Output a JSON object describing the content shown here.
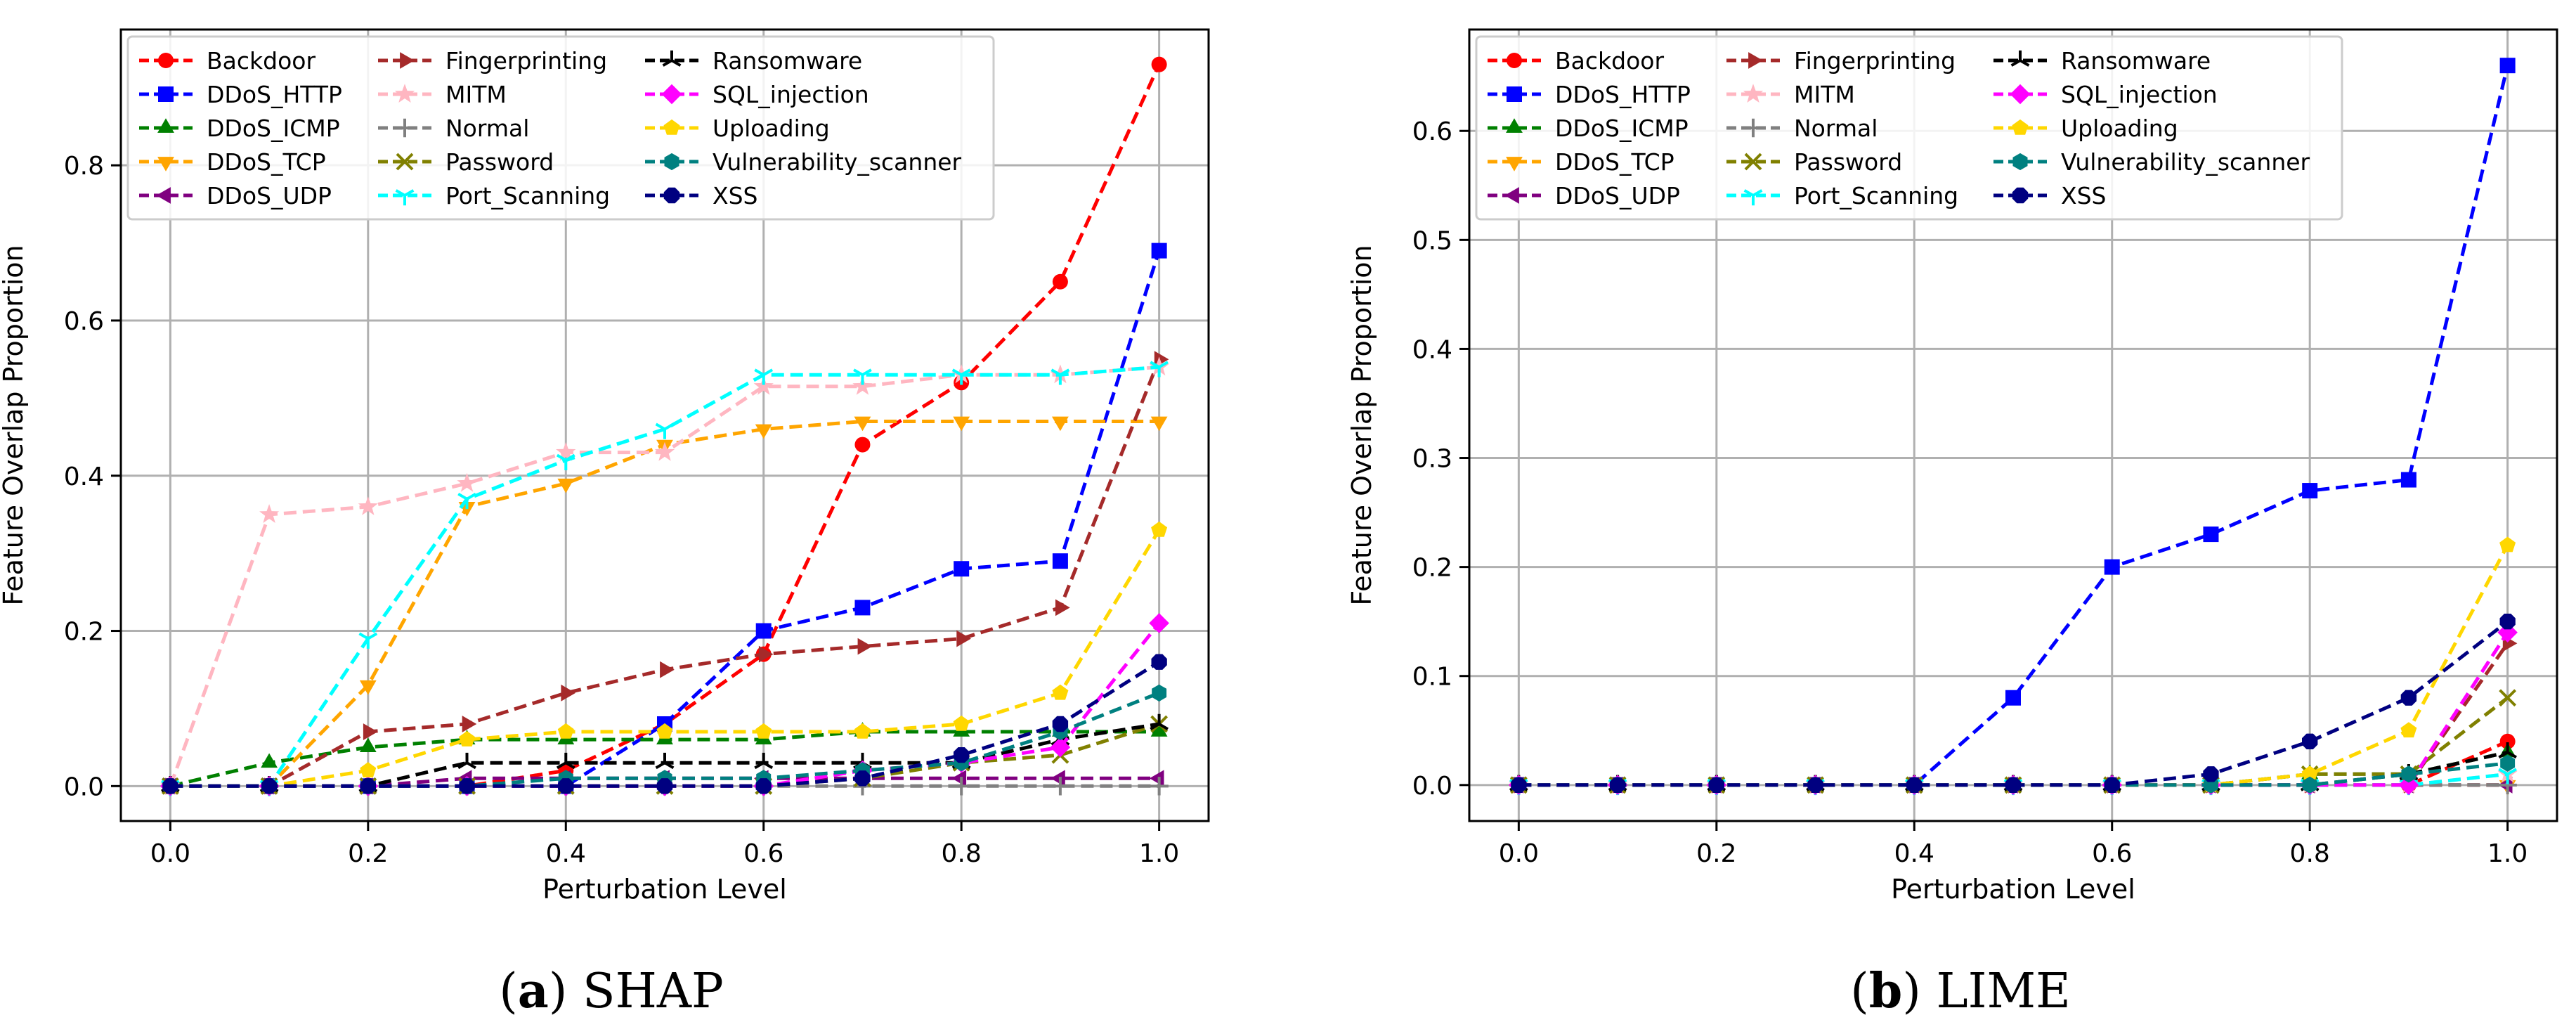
{
  "figure": {
    "panels": [
      {
        "id": "a",
        "letter": "a",
        "title": "SHAP"
      },
      {
        "id": "b",
        "letter": "b",
        "title": "LIME"
      }
    ]
  },
  "chart_data": [
    {
      "type": "line",
      "panel": "(a) SHAP",
      "xlabel": "Perturbation Level",
      "ylabel": "Feature Overlap Proportion",
      "xlim": [
        -0.05,
        1.05
      ],
      "ylim": [
        -0.045,
        0.975
      ],
      "xticks": [
        0.0,
        0.2,
        0.4,
        0.6,
        0.8,
        1.0
      ],
      "xtick_labels": [
        "0.0",
        "0.2",
        "0.4",
        "0.6",
        "0.8",
        "1.0"
      ],
      "yticks": [
        0.0,
        0.2,
        0.4,
        0.6,
        0.8
      ],
      "ytick_labels": [
        "0.0",
        "0.2",
        "0.4",
        "0.6",
        "0.8"
      ],
      "grid": true,
      "legend": "upper-left",
      "x": [
        0.0,
        0.1,
        0.2,
        0.3,
        0.4,
        0.5,
        0.6,
        0.7,
        0.8,
        0.9,
        1.0
      ],
      "series": [
        {
          "name": "Backdoor",
          "color": "#ff0000",
          "marker": "circle",
          "values": [
            0,
            0,
            0,
            0,
            0.02,
            0.08,
            0.17,
            0.44,
            0.52,
            0.65,
            0.93
          ]
        },
        {
          "name": "DDoS_HTTP",
          "color": "#0000ff",
          "marker": "square",
          "values": [
            0,
            0,
            0,
            0,
            0,
            0.08,
            0.2,
            0.23,
            0.28,
            0.29,
            0.69
          ]
        },
        {
          "name": "DDoS_ICMP",
          "color": "#008000",
          "marker": "triangle-up",
          "values": [
            0,
            0.03,
            0.05,
            0.06,
            0.06,
            0.06,
            0.06,
            0.07,
            0.07,
            0.07,
            0.07
          ]
        },
        {
          "name": "DDoS_TCP",
          "color": "#ffa500",
          "marker": "triangle-down",
          "values": [
            0,
            0,
            0.13,
            0.36,
            0.39,
            0.44,
            0.46,
            0.47,
            0.47,
            0.47,
            0.47
          ]
        },
        {
          "name": "DDoS_UDP",
          "color": "#800080",
          "marker": "triangle-left",
          "values": [
            0,
            0,
            0,
            0.01,
            0.01,
            0.01,
            0.01,
            0.01,
            0.01,
            0.01,
            0.01
          ]
        },
        {
          "name": "Fingerprinting",
          "color": "#a52a2a",
          "marker": "triangle-right",
          "values": [
            0,
            0,
            0.07,
            0.08,
            0.12,
            0.15,
            0.17,
            0.18,
            0.19,
            0.23,
            0.55
          ]
        },
        {
          "name": "MITM",
          "color": "#ffb6c1",
          "marker": "star",
          "values": [
            0,
            0.35,
            0.36,
            0.39,
            0.43,
            0.43,
            0.515,
            0.515,
            0.53,
            0.53,
            0.54
          ]
        },
        {
          "name": "Normal",
          "color": "#808080",
          "marker": "plus",
          "values": [
            0,
            0,
            0,
            0,
            0,
            0,
            0,
            0,
            0,
            0,
            0
          ]
        },
        {
          "name": "Password",
          "color": "#808000",
          "marker": "x",
          "values": [
            0,
            0,
            0,
            0,
            0,
            0,
            0,
            0.01,
            0.03,
            0.04,
            0.08
          ]
        },
        {
          "name": "Port_Scanning",
          "color": "#00ffff",
          "marker": "tri-down",
          "values": [
            0,
            0,
            0.19,
            0.37,
            0.42,
            0.46,
            0.53,
            0.53,
            0.53,
            0.53,
            0.54
          ]
        },
        {
          "name": "Ransomware",
          "color": "#000000",
          "marker": "tri-star",
          "values": [
            0,
            0,
            0,
            0.03,
            0.03,
            0.03,
            0.03,
            0.03,
            0.03,
            0.06,
            0.08
          ]
        },
        {
          "name": "SQL_injection",
          "color": "#ff00ff",
          "marker": "diamond",
          "values": [
            0,
            0,
            0,
            0,
            0,
            0,
            0,
            0.02,
            0.03,
            0.05,
            0.21
          ]
        },
        {
          "name": "Uploading",
          "color": "#ffd700",
          "marker": "pentagon",
          "values": [
            0,
            0,
            0.02,
            0.06,
            0.07,
            0.07,
            0.07,
            0.07,
            0.08,
            0.12,
            0.33
          ]
        },
        {
          "name": "Vulnerability_scanner",
          "color": "#008080",
          "marker": "hexagon",
          "values": [
            0,
            0,
            0,
            0,
            0.01,
            0.01,
            0.01,
            0.02,
            0.03,
            0.07,
            0.12
          ]
        },
        {
          "name": "XSS",
          "color": "#000080",
          "marker": "octagon",
          "values": [
            0,
            0,
            0,
            0,
            0,
            0,
            0,
            0.01,
            0.04,
            0.08,
            0.16
          ]
        }
      ]
    },
    {
      "type": "line",
      "panel": "(b) LIME",
      "xlabel": "Perturbation Level",
      "ylabel": "Feature Overlap Proportion",
      "xlim": [
        -0.05,
        1.05
      ],
      "ylim": [
        -0.033,
        0.693
      ],
      "xticks": [
        0.0,
        0.2,
        0.4,
        0.6,
        0.8,
        1.0
      ],
      "xtick_labels": [
        "0.0",
        "0.2",
        "0.4",
        "0.6",
        "0.8",
        "1.0"
      ],
      "yticks": [
        0.0,
        0.1,
        0.2,
        0.3,
        0.4,
        0.5,
        0.6
      ],
      "ytick_labels": [
        "0.0",
        "0.1",
        "0.2",
        "0.3",
        "0.4",
        "0.5",
        "0.6"
      ],
      "grid": true,
      "legend": "upper-left",
      "x": [
        0.0,
        0.1,
        0.2,
        0.3,
        0.4,
        0.5,
        0.6,
        0.7,
        0.8,
        0.9,
        1.0
      ],
      "series": [
        {
          "name": "Backdoor",
          "color": "#ff0000",
          "marker": "circle",
          "values": [
            0,
            0,
            0,
            0,
            0,
            0,
            0,
            0,
            0,
            0,
            0.04
          ]
        },
        {
          "name": "DDoS_HTTP",
          "color": "#0000ff",
          "marker": "square",
          "values": [
            0,
            0,
            0,
            0,
            0,
            0.08,
            0.2,
            0.23,
            0.27,
            0.28,
            0.66
          ]
        },
        {
          "name": "DDoS_ICMP",
          "color": "#008000",
          "marker": "triangle-up",
          "values": [
            0,
            0,
            0,
            0,
            0,
            0,
            0,
            0,
            0.01,
            0.01,
            0.03
          ]
        },
        {
          "name": "DDoS_TCP",
          "color": "#ffa500",
          "marker": "triangle-down",
          "values": [
            0,
            0,
            0,
            0,
            0,
            0,
            0,
            0,
            0,
            0,
            0
          ]
        },
        {
          "name": "DDoS_UDP",
          "color": "#800080",
          "marker": "triangle-left",
          "values": [
            0,
            0,
            0,
            0,
            0,
            0,
            0,
            0,
            0,
            0,
            0
          ]
        },
        {
          "name": "Fingerprinting",
          "color": "#a52a2a",
          "marker": "triangle-right",
          "values": [
            0,
            0,
            0,
            0,
            0,
            0,
            0,
            0,
            0,
            0,
            0.13
          ]
        },
        {
          "name": "MITM",
          "color": "#ffb6c1",
          "marker": "star",
          "values": [
            0,
            0,
            0,
            0,
            0,
            0,
            0,
            0,
            0,
            0,
            0.01
          ]
        },
        {
          "name": "Normal",
          "color": "#808080",
          "marker": "plus",
          "values": [
            0,
            0,
            0,
            0,
            0,
            0,
            0,
            0,
            0,
            0,
            0
          ]
        },
        {
          "name": "Password",
          "color": "#808000",
          "marker": "x",
          "values": [
            0,
            0,
            0,
            0,
            0,
            0,
            0,
            0,
            0.01,
            0.01,
            0.08
          ]
        },
        {
          "name": "Port_Scanning",
          "color": "#00ffff",
          "marker": "tri-down",
          "values": [
            0,
            0,
            0,
            0,
            0,
            0,
            0,
            0,
            0,
            0,
            0.01
          ]
        },
        {
          "name": "Ransomware",
          "color": "#000000",
          "marker": "tri-star",
          "values": [
            0,
            0,
            0,
            0,
            0,
            0,
            0,
            0,
            0,
            0.01,
            0.03
          ]
        },
        {
          "name": "SQL_injection",
          "color": "#ff00ff",
          "marker": "diamond",
          "values": [
            0,
            0,
            0,
            0,
            0,
            0,
            0,
            0,
            0,
            0,
            0.14
          ]
        },
        {
          "name": "Uploading",
          "color": "#ffd700",
          "marker": "pentagon",
          "values": [
            0,
            0,
            0,
            0,
            0,
            0,
            0,
            0,
            0.01,
            0.05,
            0.22
          ]
        },
        {
          "name": "Vulnerability_scanner",
          "color": "#008080",
          "marker": "hexagon",
          "values": [
            0,
            0,
            0,
            0,
            0,
            0,
            0,
            0,
            0,
            0.01,
            0.02
          ]
        },
        {
          "name": "XSS",
          "color": "#000080",
          "marker": "octagon",
          "values": [
            0,
            0,
            0,
            0,
            0,
            0,
            0,
            0.01,
            0.04,
            0.08,
            0.15
          ]
        }
      ]
    }
  ]
}
